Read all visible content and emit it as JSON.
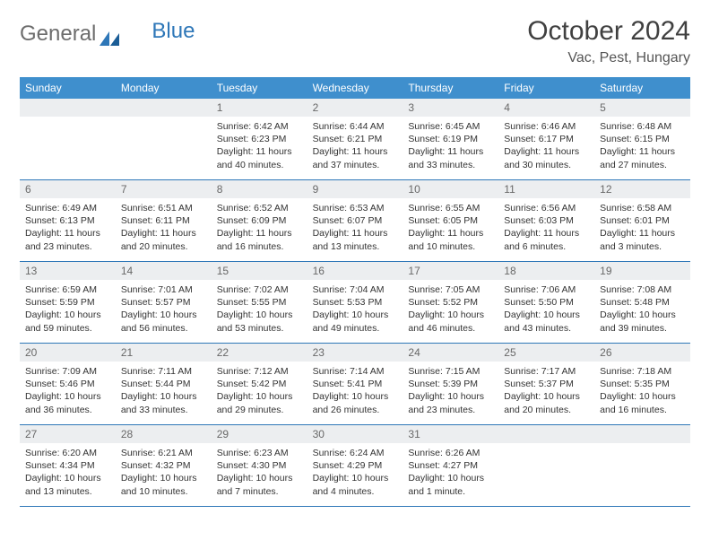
{
  "logo": {
    "text1": "General",
    "text2": "Blue"
  },
  "header": {
    "month_title": "October 2024",
    "location": "Vac, Pest, Hungary"
  },
  "colors": {
    "header_bg": "#3f8fcd",
    "header_text": "#ffffff",
    "daynum_bg": "#eceef0",
    "daynum_text": "#686868",
    "border": "#2e77b8",
    "body_text": "#333333",
    "page_bg": "#ffffff"
  },
  "typography": {
    "month_title_fontsize": 30,
    "location_fontsize": 16,
    "weekday_fontsize": 12,
    "daynum_fontsize": 12,
    "body_fontsize": 10.5
  },
  "weekdays": [
    "Sunday",
    "Monday",
    "Tuesday",
    "Wednesday",
    "Thursday",
    "Friday",
    "Saturday"
  ],
  "weeks": [
    [
      {
        "empty": true
      },
      {
        "empty": true
      },
      {
        "num": "1",
        "sunrise": "Sunrise: 6:42 AM",
        "sunset": "Sunset: 6:23 PM",
        "daylight": "Daylight: 11 hours and 40 minutes."
      },
      {
        "num": "2",
        "sunrise": "Sunrise: 6:44 AM",
        "sunset": "Sunset: 6:21 PM",
        "daylight": "Daylight: 11 hours and 37 minutes."
      },
      {
        "num": "3",
        "sunrise": "Sunrise: 6:45 AM",
        "sunset": "Sunset: 6:19 PM",
        "daylight": "Daylight: 11 hours and 33 minutes."
      },
      {
        "num": "4",
        "sunrise": "Sunrise: 6:46 AM",
        "sunset": "Sunset: 6:17 PM",
        "daylight": "Daylight: 11 hours and 30 minutes."
      },
      {
        "num": "5",
        "sunrise": "Sunrise: 6:48 AM",
        "sunset": "Sunset: 6:15 PM",
        "daylight": "Daylight: 11 hours and 27 minutes."
      }
    ],
    [
      {
        "num": "6",
        "sunrise": "Sunrise: 6:49 AM",
        "sunset": "Sunset: 6:13 PM",
        "daylight": "Daylight: 11 hours and 23 minutes."
      },
      {
        "num": "7",
        "sunrise": "Sunrise: 6:51 AM",
        "sunset": "Sunset: 6:11 PM",
        "daylight": "Daylight: 11 hours and 20 minutes."
      },
      {
        "num": "8",
        "sunrise": "Sunrise: 6:52 AM",
        "sunset": "Sunset: 6:09 PM",
        "daylight": "Daylight: 11 hours and 16 minutes."
      },
      {
        "num": "9",
        "sunrise": "Sunrise: 6:53 AM",
        "sunset": "Sunset: 6:07 PM",
        "daylight": "Daylight: 11 hours and 13 minutes."
      },
      {
        "num": "10",
        "sunrise": "Sunrise: 6:55 AM",
        "sunset": "Sunset: 6:05 PM",
        "daylight": "Daylight: 11 hours and 10 minutes."
      },
      {
        "num": "11",
        "sunrise": "Sunrise: 6:56 AM",
        "sunset": "Sunset: 6:03 PM",
        "daylight": "Daylight: 11 hours and 6 minutes."
      },
      {
        "num": "12",
        "sunrise": "Sunrise: 6:58 AM",
        "sunset": "Sunset: 6:01 PM",
        "daylight": "Daylight: 11 hours and 3 minutes."
      }
    ],
    [
      {
        "num": "13",
        "sunrise": "Sunrise: 6:59 AM",
        "sunset": "Sunset: 5:59 PM",
        "daylight": "Daylight: 10 hours and 59 minutes."
      },
      {
        "num": "14",
        "sunrise": "Sunrise: 7:01 AM",
        "sunset": "Sunset: 5:57 PM",
        "daylight": "Daylight: 10 hours and 56 minutes."
      },
      {
        "num": "15",
        "sunrise": "Sunrise: 7:02 AM",
        "sunset": "Sunset: 5:55 PM",
        "daylight": "Daylight: 10 hours and 53 minutes."
      },
      {
        "num": "16",
        "sunrise": "Sunrise: 7:04 AM",
        "sunset": "Sunset: 5:53 PM",
        "daylight": "Daylight: 10 hours and 49 minutes."
      },
      {
        "num": "17",
        "sunrise": "Sunrise: 7:05 AM",
        "sunset": "Sunset: 5:52 PM",
        "daylight": "Daylight: 10 hours and 46 minutes."
      },
      {
        "num": "18",
        "sunrise": "Sunrise: 7:06 AM",
        "sunset": "Sunset: 5:50 PM",
        "daylight": "Daylight: 10 hours and 43 minutes."
      },
      {
        "num": "19",
        "sunrise": "Sunrise: 7:08 AM",
        "sunset": "Sunset: 5:48 PM",
        "daylight": "Daylight: 10 hours and 39 minutes."
      }
    ],
    [
      {
        "num": "20",
        "sunrise": "Sunrise: 7:09 AM",
        "sunset": "Sunset: 5:46 PM",
        "daylight": "Daylight: 10 hours and 36 minutes."
      },
      {
        "num": "21",
        "sunrise": "Sunrise: 7:11 AM",
        "sunset": "Sunset: 5:44 PM",
        "daylight": "Daylight: 10 hours and 33 minutes."
      },
      {
        "num": "22",
        "sunrise": "Sunrise: 7:12 AM",
        "sunset": "Sunset: 5:42 PM",
        "daylight": "Daylight: 10 hours and 29 minutes."
      },
      {
        "num": "23",
        "sunrise": "Sunrise: 7:14 AM",
        "sunset": "Sunset: 5:41 PM",
        "daylight": "Daylight: 10 hours and 26 minutes."
      },
      {
        "num": "24",
        "sunrise": "Sunrise: 7:15 AM",
        "sunset": "Sunset: 5:39 PM",
        "daylight": "Daylight: 10 hours and 23 minutes."
      },
      {
        "num": "25",
        "sunrise": "Sunrise: 7:17 AM",
        "sunset": "Sunset: 5:37 PM",
        "daylight": "Daylight: 10 hours and 20 minutes."
      },
      {
        "num": "26",
        "sunrise": "Sunrise: 7:18 AM",
        "sunset": "Sunset: 5:35 PM",
        "daylight": "Daylight: 10 hours and 16 minutes."
      }
    ],
    [
      {
        "num": "27",
        "sunrise": "Sunrise: 6:20 AM",
        "sunset": "Sunset: 4:34 PM",
        "daylight": "Daylight: 10 hours and 13 minutes."
      },
      {
        "num": "28",
        "sunrise": "Sunrise: 6:21 AM",
        "sunset": "Sunset: 4:32 PM",
        "daylight": "Daylight: 10 hours and 10 minutes."
      },
      {
        "num": "29",
        "sunrise": "Sunrise: 6:23 AM",
        "sunset": "Sunset: 4:30 PM",
        "daylight": "Daylight: 10 hours and 7 minutes."
      },
      {
        "num": "30",
        "sunrise": "Sunrise: 6:24 AM",
        "sunset": "Sunset: 4:29 PM",
        "daylight": "Daylight: 10 hours and 4 minutes."
      },
      {
        "num": "31",
        "sunrise": "Sunrise: 6:26 AM",
        "sunset": "Sunset: 4:27 PM",
        "daylight": "Daylight: 10 hours and 1 minute."
      },
      {
        "empty": true
      },
      {
        "empty": true
      }
    ]
  ]
}
